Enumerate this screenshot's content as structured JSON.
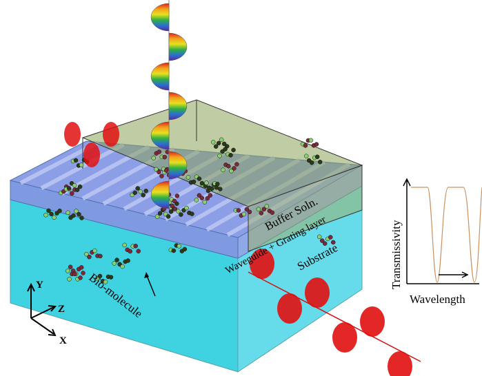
{
  "layers": {
    "buffer": "Buffer Soln.",
    "waveguide": "Waveguide + Grating layer",
    "substrate": "Substrate"
  },
  "callout": "Bio-molecule",
  "axes": {
    "y": "Y",
    "z": "Z",
    "x": "X"
  },
  "inset": {
    "y_label": "Transmissivity",
    "x_label": "Wavelength"
  }
}
